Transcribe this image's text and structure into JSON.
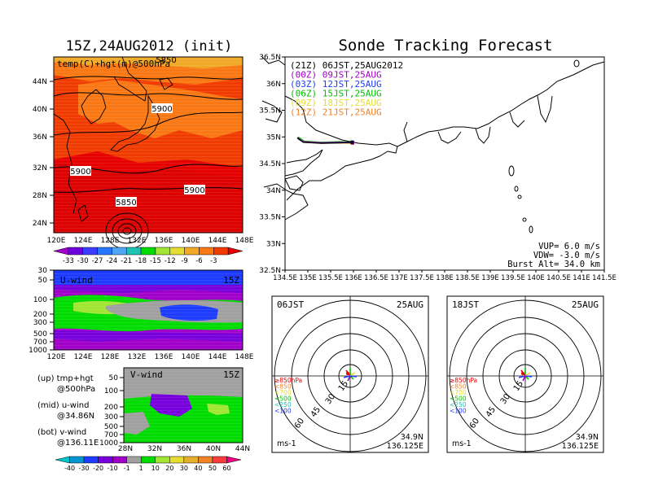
{
  "colors": {
    "temp_scale": [
      "#a000c8",
      "#6e00dc",
      "#3c3cff",
      "#2878ff",
      "#50a5f5",
      "#1ec3b4",
      "#00dc00",
      "#a0e632",
      "#e6dc32",
      "#f0aa28",
      "#fa7814",
      "#f03c00",
      "#e60000"
    ],
    "wind_scale": [
      "#00c8c8",
      "#0096d2",
      "#1e3cff",
      "#7800dc",
      "#a000c8",
      "#a0a0a0",
      "#00dc00",
      "#a0e632",
      "#e6dc32",
      "#e6af2d",
      "#f08228",
      "#fa3c3c",
      "#f00082"
    ],
    "track_21z": "#000000",
    "track_00z": "#a000c8",
    "track_03z": "#1e3cff",
    "track_06z": "#00c000",
    "track_09z": "#e6dc32",
    "track_12z": "#f08228"
  },
  "left": {
    "title": "15Z,24AUG2012 (init)",
    "map_label": "temp(C)+hgt(m)@500hPa",
    "contours": [
      "5850",
      "5900",
      "5900",
      "5900",
      "5850"
    ],
    "top_contour": "5850",
    "lat_ticks": [
      "44N",
      "40N",
      "36N",
      "32N",
      "28N",
      "24N"
    ],
    "lon_ticks": [
      "120E",
      "124E",
      "128E",
      "132E",
      "136E",
      "140E",
      "144E",
      "148E"
    ],
    "temp_colorbar": [
      "-33",
      "-30",
      "-27",
      "-24",
      "-21",
      "-18",
      "-15",
      "-12",
      "-9",
      "-6",
      "-3"
    ],
    "uwind": {
      "label": "U-wind",
      "time": "15Z",
      "p_ticks": [
        "30",
        "50",
        "100",
        "200",
        "300",
        "500",
        "700",
        "1000"
      ]
    },
    "vwind": {
      "label": "V-wind",
      "time": "15Z",
      "p_ticks": [
        "50",
        "100",
        "200",
        "300",
        "500",
        "700",
        "1000"
      ],
      "lat_ticks": [
        "28N",
        "32N",
        "36N",
        "40N",
        "44N"
      ]
    },
    "notes": [
      {
        "k": "(up)  tmp+hgt",
        "v": "@500hPa"
      },
      {
        "k": "(mid)  u-wind",
        "v": "@34.86N"
      },
      {
        "k": "(bot)  v-wind",
        "v": "@136.11E"
      }
    ],
    "wind_colorbar": [
      "-40",
      "-30",
      "-20",
      "-10",
      "-1",
      "1",
      "10",
      "20",
      "30",
      "40",
      "50",
      "60"
    ]
  },
  "right": {
    "title": "Sonde Tracking Forecast",
    "legend": [
      {
        "text": "(21Z)  06JST,25AUG2012"
      },
      {
        "text": "(00Z)  09JST,25AUG"
      },
      {
        "text": "(03Z)  12JST,25AUG"
      },
      {
        "text": "(06Z)  15JST,25AUG"
      },
      {
        "text": "(09Z)  18JST,25AUG"
      },
      {
        "text": "(12Z)  21JST,25AUG"
      }
    ],
    "lat_ticks": [
      "36.5N",
      "36N",
      "35.5N",
      "35N",
      "34.5N",
      "34N",
      "33.5N",
      "33N",
      "32.5N"
    ],
    "lon_ticks": [
      "134.5E",
      "135E",
      "135.5E",
      "136E",
      "136.5E",
      "137E",
      "137.5E",
      "138E",
      "138.5E",
      "139E",
      "139.5E",
      "140E",
      "140.5E",
      "141E",
      "141.5E"
    ],
    "params": [
      "VUP=  6.0  m/s",
      "VDW=  -3.0  m/s",
      "Burst Alt=  34.0  km"
    ]
  },
  "polars": [
    {
      "time": "06JST",
      "date": "25AUG",
      "lat": "34.9N",
      "lon": "136.125E",
      "units": "ms-1",
      "rings": [
        "15",
        "30",
        "45",
        "60"
      ],
      "levels": [
        "≥850hPa",
        "<850",
        "<700",
        "<500",
        "<250",
        "<100"
      ]
    },
    {
      "time": "18JST",
      "date": "25AUG",
      "lat": "34.9N",
      "lon": "136.125E",
      "units": "ms-1",
      "rings": [
        "15",
        "30",
        "45",
        "60"
      ],
      "levels": [
        "≥850hPa",
        "<850",
        "<700",
        "<500",
        "<250",
        "<100"
      ]
    }
  ],
  "chart_data": [
    {
      "type": "heatmap",
      "title": "15Z,24AUG2012 (init)",
      "xlabel": "",
      "ylabel": "",
      "x_ticks": [
        "120E",
        "124E",
        "128E",
        "132E",
        "136E",
        "140E",
        "144E",
        "148E"
      ],
      "y_ticks": [
        "24N",
        "28N",
        "32N",
        "36N",
        "40N",
        "44N"
      ],
      "colorbar": [
        -33,
        -30,
        -27,
        -24,
        -21,
        -18,
        -15,
        -12,
        -9,
        -6,
        -3
      ]
    },
    {
      "type": "heatmap",
      "title": "U-wind",
      "xlim": [
        "120E",
        "148E"
      ],
      "ylim": [
        1000,
        30
      ]
    },
    {
      "type": "heatmap",
      "title": "V-wind",
      "xlim": [
        "28N",
        "44N"
      ],
      "ylim": [
        1000,
        50
      ]
    },
    {
      "type": "line",
      "title": "Sonde Tracking Forecast",
      "xlim": [
        134.5,
        141.5
      ],
      "ylim": [
        32.5,
        36.5
      ],
      "series": [
        {
          "name": "(21Z)  06JST,25AUG2012",
          "x": [
            134.77,
            134.9,
            135.3,
            135.7,
            135.97
          ],
          "y": [
            34.98,
            34.9,
            34.88,
            34.89,
            34.9
          ]
        },
        {
          "name": "(00Z)  09JST,25AUG",
          "x": [
            134.77,
            134.9,
            135.3,
            135.7,
            135.98
          ],
          "y": [
            34.99,
            34.91,
            34.89,
            34.9,
            34.89
          ]
        },
        {
          "name": "(03Z)  12JST,25AUG",
          "x": [
            134.78,
            134.9,
            135.3,
            135.7,
            135.98
          ],
          "y": [
            34.97,
            34.9,
            34.89,
            34.9,
            34.9
          ]
        },
        {
          "name": "(06Z)  15JST,25AUG",
          "x": [
            134.79,
            134.92,
            135.3,
            135.7,
            135.97
          ],
          "y": [
            35.0,
            34.92,
            34.9,
            34.91,
            34.9
          ]
        },
        {
          "name": "(09Z)  18JST,25AUG",
          "x": [
            134.8,
            134.92,
            135.3,
            135.7,
            135.97
          ],
          "y": [
            34.99,
            34.91,
            34.89,
            34.9,
            34.89
          ]
        },
        {
          "name": "(12Z)  21JST,25AUG",
          "x": [
            134.8,
            134.93,
            135.3,
            135.7,
            135.98
          ],
          "y": [
            34.98,
            34.9,
            34.88,
            34.89,
            34.88
          ]
        }
      ]
    }
  ]
}
